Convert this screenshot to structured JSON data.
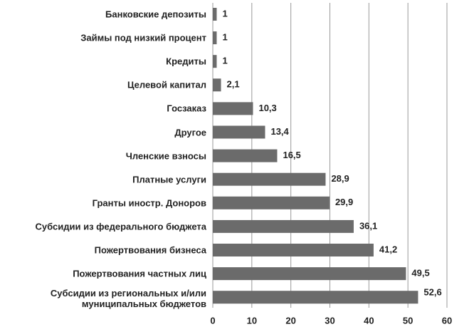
{
  "chart_data": {
    "type": "barh",
    "categories": [
      "Банковские депозиты",
      "Займы под низкий процент",
      "Кредиты",
      "Целевой капитал",
      "Госзаказ",
      "Другое",
      "Членские взносы",
      "Платные услуги",
      "Гранты иностр. Доноров",
      "Субсидии из федерального бюджета",
      "Пожертвования бизнеса",
      "Пожертвования частных лиц",
      "Субсидии из региональных и/или\nмуниципальных бюджетов"
    ],
    "values": [
      1,
      1,
      1,
      2.1,
      10.3,
      13.4,
      16.5,
      28.9,
      29.9,
      36.1,
      41.2,
      49.5,
      52.6
    ],
    "value_labels": [
      "1",
      "1",
      "1",
      "2,1",
      "10,3",
      "13,4",
      "16,5",
      "28,9",
      "29,9",
      "36,1",
      "41,2",
      "49,5",
      "52,6"
    ],
    "color": "#6b6b6b",
    "xlim": [
      0,
      60
    ],
    "xticks": [
      0,
      10,
      20,
      30,
      40,
      50,
      60
    ],
    "grid": true
  }
}
